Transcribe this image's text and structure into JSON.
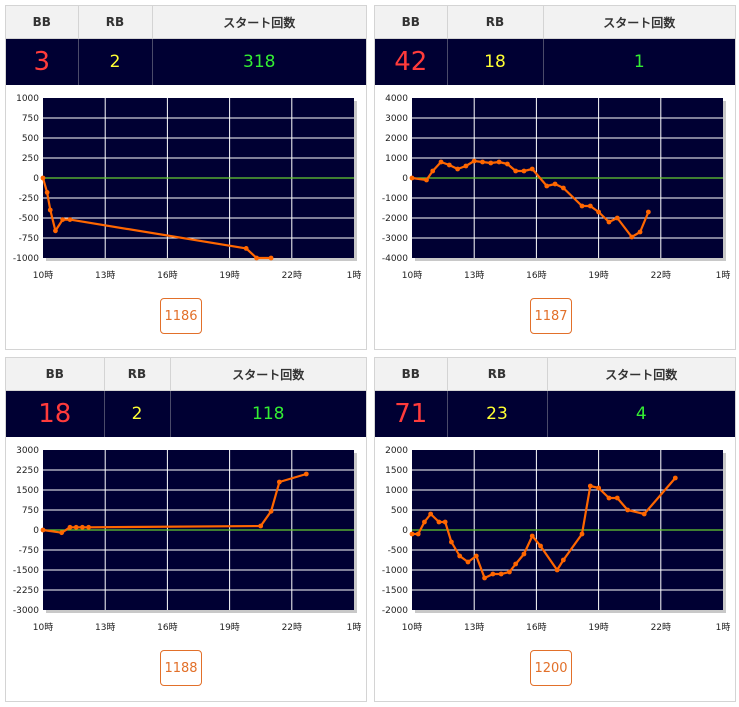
{
  "headers": {
    "bb": "BB",
    "rb": "RB",
    "start": "スタート回数"
  },
  "colors": {
    "plot_bg": "#000033",
    "line": "#ff6600",
    "zero_line": "#66cc33",
    "grid": "#ffffff",
    "bb": "#ff3b3b",
    "rb": "#ffff33",
    "start": "#33ee33",
    "button": "#e2702a"
  },
  "panels": [
    {
      "bb": "3",
      "rb": "2",
      "start": "318",
      "machine": "1186"
    },
    {
      "bb": "42",
      "rb": "18",
      "start": "1",
      "machine": "1187"
    },
    {
      "bb": "18",
      "rb": "2",
      "start": "118",
      "machine": "1188"
    },
    {
      "bb": "71",
      "rb": "23",
      "start": "4",
      "machine": "1200"
    }
  ],
  "chart_data": [
    {
      "type": "line",
      "x_labels": [
        "10時",
        "13時",
        "16時",
        "19時",
        "22時",
        "1時"
      ],
      "xlim": [
        10,
        25
      ],
      "ylim": [
        -1000,
        1000
      ],
      "y_ticks": [
        "1000",
        "750",
        "500",
        "250",
        "0",
        "-250",
        "-500",
        "-750",
        "-1000"
      ],
      "grid": true,
      "series": [
        {
          "x": [
            10.0,
            10.2,
            10.35,
            10.6,
            10.95,
            11.3,
            19.8,
            20.3,
            21.0
          ],
          "y": [
            0,
            -180,
            -400,
            -660,
            -520,
            -520,
            -880,
            -1000,
            -1000
          ]
        }
      ]
    },
    {
      "type": "line",
      "x_labels": [
        "10時",
        "13時",
        "16時",
        "19時",
        "22時",
        "1時"
      ],
      "xlim": [
        10,
        25
      ],
      "ylim": [
        -4000,
        4000
      ],
      "y_ticks": [
        "4000",
        "3000",
        "2000",
        "1000",
        "0",
        "-1000",
        "-2000",
        "-3000",
        "-4000"
      ],
      "grid": true,
      "series": [
        {
          "x": [
            10.0,
            10.7,
            11.0,
            11.4,
            11.8,
            12.2,
            12.6,
            13.0,
            13.4,
            13.8,
            14.2,
            14.6,
            15.0,
            15.4,
            15.8,
            16.5,
            16.9,
            17.3,
            18.2,
            18.6,
            19.0,
            19.5,
            19.9,
            20.6,
            21.0,
            21.4
          ],
          "y": [
            0,
            -100,
            350,
            800,
            650,
            450,
            600,
            850,
            800,
            750,
            800,
            700,
            350,
            350,
            450,
            -400,
            -300,
            -500,
            -1400,
            -1400,
            -1700,
            -2200,
            -2000,
            -2950,
            -2700,
            -1700
          ]
        }
      ]
    },
    {
      "type": "line",
      "x_labels": [
        "10時",
        "13時",
        "16時",
        "19時",
        "22時",
        "1時"
      ],
      "xlim": [
        10,
        25
      ],
      "ylim": [
        -3000,
        3000
      ],
      "y_ticks": [
        "3000",
        "2250",
        "1500",
        "750",
        "0",
        "-750",
        "-1500",
        "-2250",
        "-3000"
      ],
      "grid": true,
      "series": [
        {
          "x": [
            10.0,
            10.9,
            11.3,
            11.6,
            11.9,
            12.2,
            20.5,
            21.0,
            21.4,
            22.7
          ],
          "y": [
            0,
            -100,
            100,
            100,
            100,
            100,
            150,
            700,
            1800,
            2100
          ]
        }
      ]
    },
    {
      "type": "line",
      "x_labels": [
        "10時",
        "13時",
        "16時",
        "19時",
        "22時",
        "1時"
      ],
      "xlim": [
        10,
        25
      ],
      "ylim": [
        -2000,
        2000
      ],
      "y_ticks": [
        "2000",
        "1500",
        "1000",
        "500",
        "0",
        "-500",
        "-1000",
        "-1500",
        "-2000"
      ],
      "grid": true,
      "series": [
        {
          "x": [
            10.0,
            10.3,
            10.6,
            10.9,
            11.3,
            11.6,
            11.9,
            12.3,
            12.7,
            13.1,
            13.5,
            13.9,
            14.3,
            14.7,
            15.0,
            15.4,
            15.8,
            16.2,
            17.0,
            17.3,
            18.2,
            18.6,
            19.0,
            19.5,
            19.9,
            20.4,
            21.2,
            22.7
          ],
          "y": [
            -100,
            -100,
            200,
            400,
            200,
            200,
            -300,
            -650,
            -800,
            -650,
            -1200,
            -1100,
            -1100,
            -1050,
            -850,
            -600,
            -150,
            -400,
            -1000,
            -750,
            -100,
            1100,
            1050,
            800,
            800,
            500,
            400,
            1300
          ]
        }
      ]
    }
  ]
}
